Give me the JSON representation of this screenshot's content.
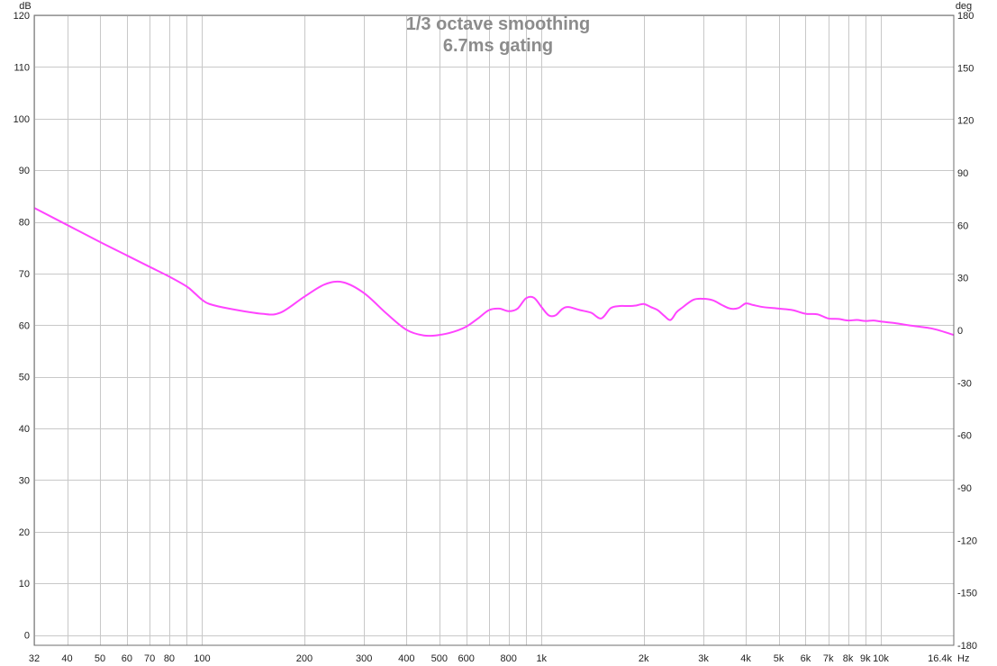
{
  "chart_data": {
    "type": "line",
    "title": "1/3 octave smoothing",
    "subtitle": "6.7ms gating",
    "xlabel": "",
    "ylabel": "",
    "x_unit": "Hz",
    "y_unit": "dB",
    "y2_unit": "deg",
    "x_scale": "log",
    "xlim": [
      32,
      16400
    ],
    "ylim": [
      -2,
      120
    ],
    "y2lim": [
      -180,
      180
    ],
    "grid": true,
    "x_ticks": [
      {
        "v": 32,
        "label": "32"
      },
      {
        "v": 40,
        "label": "40"
      },
      {
        "v": 50,
        "label": "50"
      },
      {
        "v": 60,
        "label": "60"
      },
      {
        "v": 70,
        "label": "70"
      },
      {
        "v": 80,
        "label": "80"
      },
      {
        "v": 100,
        "label": "100"
      },
      {
        "v": 200,
        "label": "200"
      },
      {
        "v": 300,
        "label": "300"
      },
      {
        "v": 400,
        "label": "400"
      },
      {
        "v": 500,
        "label": "500"
      },
      {
        "v": 600,
        "label": "600"
      },
      {
        "v": 800,
        "label": "800"
      },
      {
        "v": 1000,
        "label": "1k"
      },
      {
        "v": 2000,
        "label": "2k"
      },
      {
        "v": 3000,
        "label": "3k"
      },
      {
        "v": 4000,
        "label": "4k"
      },
      {
        "v": 5000,
        "label": "5k"
      },
      {
        "v": 6000,
        "label": "6k"
      },
      {
        "v": 7000,
        "label": "7k"
      },
      {
        "v": 8000,
        "label": "8k"
      },
      {
        "v": 9000,
        "label": "9k"
      },
      {
        "v": 10000,
        "label": "10k"
      },
      {
        "v": 16400,
        "label": "16.4k"
      }
    ],
    "x_gridlines": [
      32,
      40,
      50,
      60,
      70,
      80,
      90,
      100,
      200,
      300,
      400,
      500,
      600,
      700,
      800,
      900,
      1000,
      2000,
      3000,
      4000,
      5000,
      6000,
      7000,
      8000,
      9000,
      10000
    ],
    "y_ticks": [
      0,
      10,
      20,
      30,
      40,
      50,
      60,
      70,
      80,
      90,
      100,
      110,
      120
    ],
    "y2_ticks": [
      -180,
      -150,
      -120,
      -90,
      -60,
      -30,
      0,
      30,
      60,
      90,
      120,
      150,
      180
    ],
    "series": [
      {
        "color": "#ff44ff",
        "x": [
          32,
          40,
          50,
          60,
          70,
          80,
          90,
          95,
          100,
          105,
          120,
          150,
          170,
          200,
          230,
          260,
          300,
          350,
          400,
          450,
          500,
          550,
          600,
          650,
          700,
          750,
          800,
          850,
          900,
          950,
          1000,
          1050,
          1100,
          1150,
          1200,
          1300,
          1400,
          1500,
          1600,
          1700,
          1800,
          1900,
          2000,
          2100,
          2200,
          2300,
          2400,
          2500,
          2600,
          2800,
          3000,
          3200,
          3400,
          3600,
          3800,
          4000,
          4200,
          4500,
          5000,
          5500,
          6000,
          6500,
          7000,
          7500,
          8000,
          8500,
          9000,
          9500,
          10000,
          11000,
          12000,
          13000,
          14000,
          15000,
          16400
        ],
        "y": [
          82.7,
          79.4,
          76.1,
          73.5,
          71.3,
          69.4,
          67.5,
          66.2,
          64.9,
          64.1,
          63.2,
          62.2,
          62.4,
          65.5,
          67.9,
          68.3,
          66.2,
          62.2,
          59.1,
          58.0,
          58.1,
          58.7,
          59.7,
          61.3,
          62.9,
          63.2,
          62.7,
          63.2,
          65.2,
          65.3,
          63.5,
          61.9,
          61.9,
          63.1,
          63.5,
          62.9,
          62.4,
          61.3,
          63.3,
          63.7,
          63.7,
          63.8,
          64.1,
          63.5,
          62.9,
          61.8,
          61.0,
          62.5,
          63.4,
          64.9,
          65.1,
          64.8,
          63.9,
          63.2,
          63.3,
          64.2,
          63.9,
          63.5,
          63.2,
          62.9,
          62.2,
          62.1,
          61.3,
          61.2,
          60.9,
          61.0,
          60.8,
          60.9,
          60.7,
          60.4,
          60.0,
          59.7,
          59.4,
          58.9,
          58.1
        ]
      }
    ]
  }
}
